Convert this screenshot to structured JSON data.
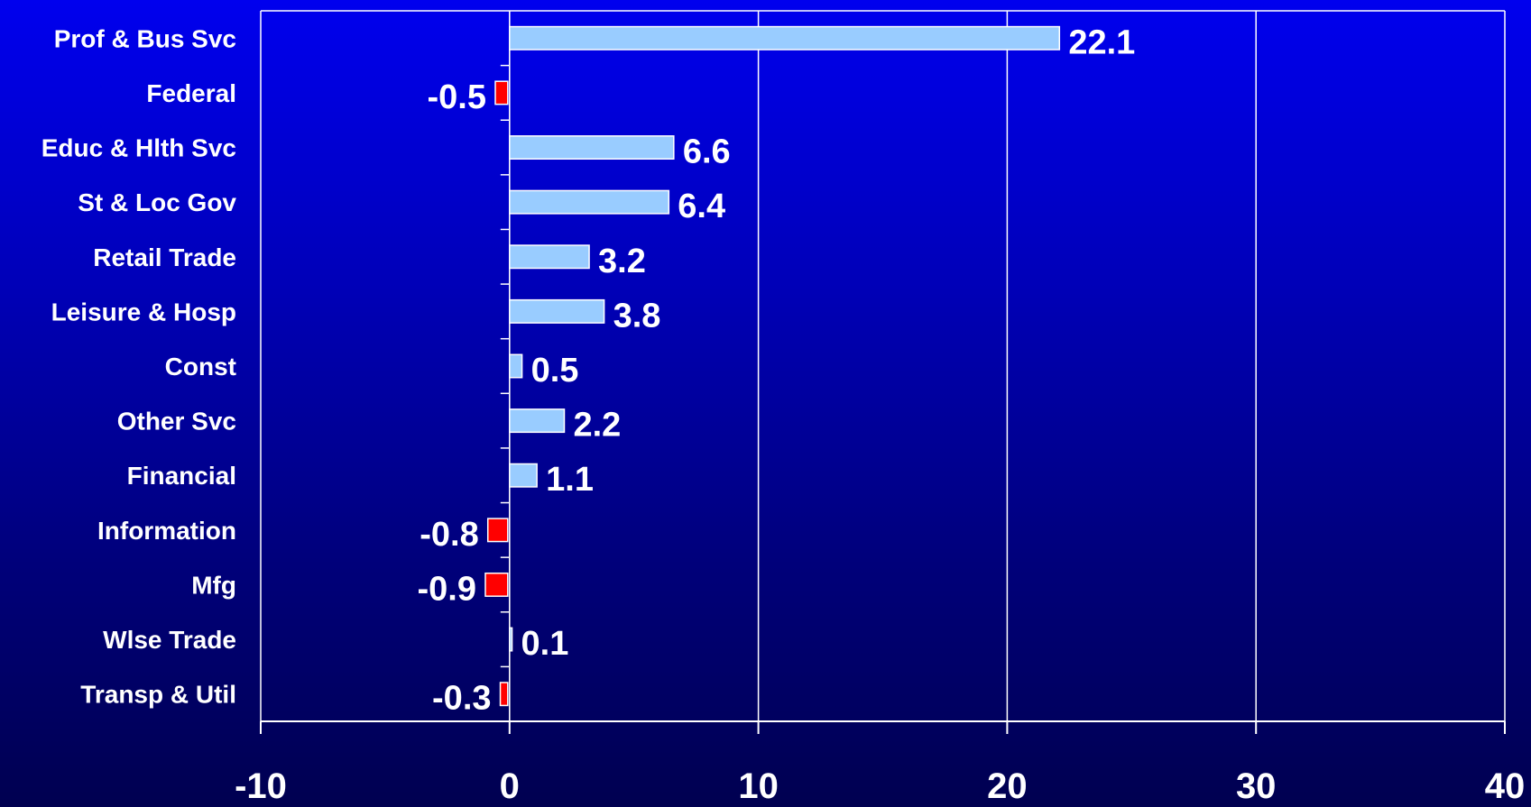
{
  "chart_data": {
    "type": "bar",
    "orientation": "horizontal",
    "title": "",
    "xlabel": "",
    "ylabel": "",
    "categories": [
      "Prof & Bus Svc",
      "Federal",
      "Educ & Hlth Svc",
      "St & Loc Gov",
      "Retail Trade",
      "Leisure & Hosp",
      "Const",
      "Other Svc",
      "Financial",
      "Information",
      "Mfg",
      "Wlse Trade",
      "Transp & Util"
    ],
    "values": [
      22.1,
      -0.5,
      6.6,
      6.4,
      3.2,
      3.8,
      0.5,
      2.2,
      1.1,
      -0.8,
      -0.9,
      0.1,
      -0.3
    ],
    "value_labels": [
      "22.1",
      "-0.5",
      "6.6",
      "6.4",
      "3.2",
      "3.8",
      "0.5",
      "2.2",
      "1.1",
      "-0.8",
      "-0.9",
      "0.1",
      "-0.3"
    ],
    "xlim": [
      -10,
      40
    ],
    "xticks": [
      -10,
      0,
      10,
      20,
      30,
      40
    ],
    "xtick_labels": [
      "-10",
      "0",
      "10",
      "20",
      "30",
      "40"
    ],
    "grid": "vertical",
    "legend": "none",
    "colors": {
      "positive": "#99ccff",
      "negative": "#ff0000",
      "bar_outline": "#ffffff",
      "grid": "#ffffff",
      "text": "#ffffff"
    }
  }
}
